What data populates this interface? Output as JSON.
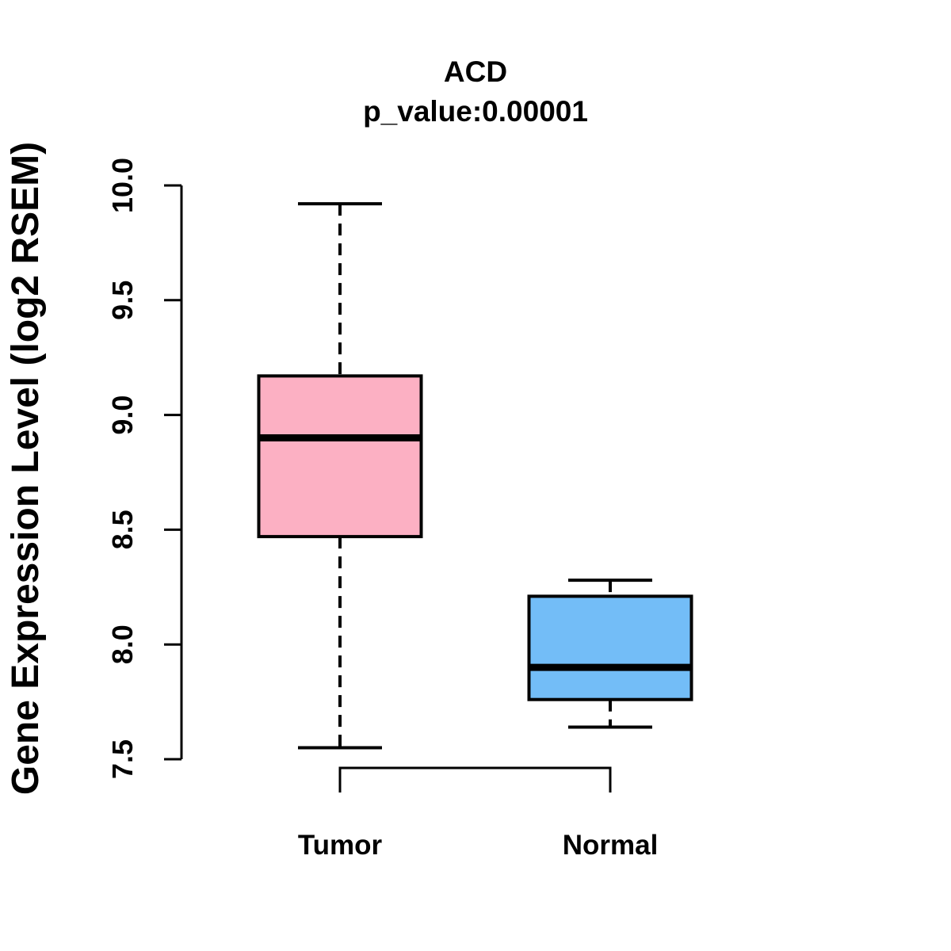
{
  "chart_data": {
    "type": "boxplot",
    "title": "ACD",
    "subtitle": "p_value:0.00001",
    "ylabel": "Gene Expression Level (log2 RSEM)",
    "ylim": [
      7.5,
      10.0
    ],
    "yticks": [
      10.0,
      9.5,
      9.0,
      8.5,
      8.0,
      7.5
    ],
    "ytick_labels": [
      "10.0",
      "9.5",
      "9.0",
      "8.5",
      "8.0",
      "7.5"
    ],
    "categories": [
      "Tumor",
      "Normal"
    ],
    "series": [
      {
        "name": "Tumor",
        "color": "#FCB0C3",
        "whisker_low": 7.55,
        "q1": 8.47,
        "median": 8.9,
        "q3": 9.17,
        "whisker_high": 9.92
      },
      {
        "name": "Normal",
        "color": "#73BDF7",
        "whisker_low": 7.64,
        "q1": 7.76,
        "median": 7.9,
        "q3": 8.21,
        "whisker_high": 8.28
      }
    ],
    "axis_color": "#000000",
    "box_border_color": "#000000",
    "median_color": "#000000",
    "grid": false,
    "legend": "none",
    "whisker_style": "dashed"
  }
}
